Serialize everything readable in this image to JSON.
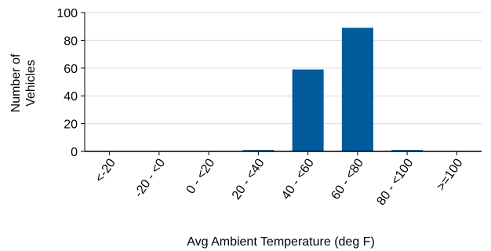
{
  "chart_data": {
    "type": "bar",
    "categories": [
      "<-20",
      "-20 - <0",
      "0 - <20",
      "20 - <40",
      "40 - <60",
      "60 - <80",
      "80 - <100",
      ">=100"
    ],
    "values": [
      0,
      0,
      0,
      1,
      59,
      89,
      1,
      0
    ],
    "title": "",
    "xlabel": "Avg Ambient Temperature (deg F)",
    "ylabel": "Number of Vehicles",
    "ylim": [
      0,
      100
    ],
    "yticks": [
      0,
      20,
      40,
      60,
      80,
      100
    ],
    "grid": true,
    "bar_color": "#005a9c",
    "grid_color": "#d9d9d9",
    "axis_color": "#000000"
  }
}
